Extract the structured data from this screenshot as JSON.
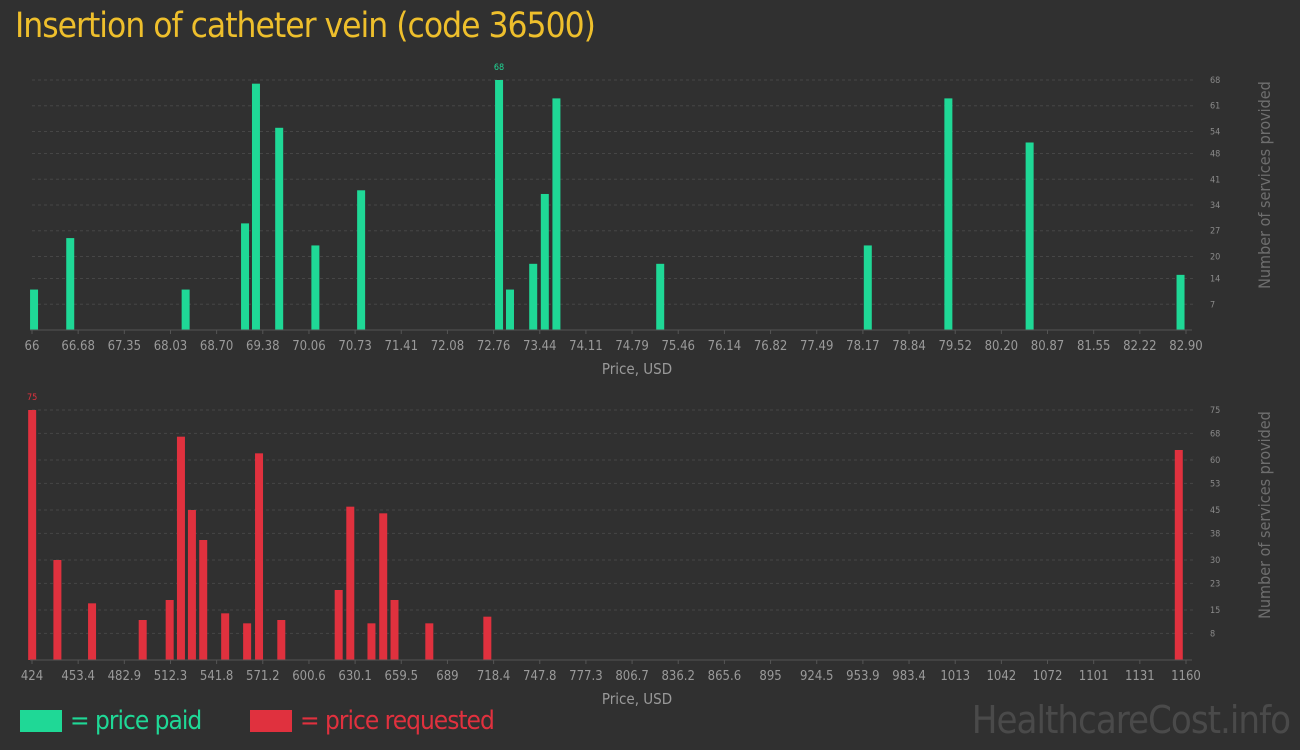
{
  "page": {
    "title": "Insertion of catheter vein (code 36500)",
    "watermark": "HealthcareCost.info"
  },
  "legend": [
    {
      "label": "= price paid",
      "color": "#1fd896"
    },
    {
      "label": "= price requested",
      "color": "#e0313e"
    }
  ],
  "chart_data": [
    {
      "type": "bar",
      "color": "#1fd896",
      "xlabel": "Price, USD",
      "ylabel": "Number of services provided",
      "grid": true,
      "xlim": [
        66,
        82.9
      ],
      "ylim": [
        0,
        68
      ],
      "xticks": [
        "66",
        "66.68",
        "67.35",
        "68.03",
        "68.70",
        "69.38",
        "70.06",
        "70.73",
        "71.41",
        "72.08",
        "72.76",
        "73.44",
        "74.11",
        "74.79",
        "75.46",
        "76.14",
        "76.82",
        "77.49",
        "78.17",
        "78.84",
        "79.52",
        "80.20",
        "80.87",
        "81.55",
        "82.22",
        "82.90"
      ],
      "yticks": [
        "7",
        "14",
        "20",
        "27",
        "34",
        "41",
        "48",
        "54",
        "61",
        "68"
      ],
      "max_label": "68",
      "bars": [
        {
          "x": 66.03,
          "y": 11
        },
        {
          "x": 66.56,
          "y": 25
        },
        {
          "x": 68.25,
          "y": 11
        },
        {
          "x": 69.12,
          "y": 29
        },
        {
          "x": 69.28,
          "y": 67
        },
        {
          "x": 69.62,
          "y": 55
        },
        {
          "x": 70.15,
          "y": 23
        },
        {
          "x": 70.82,
          "y": 38
        },
        {
          "x": 72.84,
          "y": 68
        },
        {
          "x": 73.0,
          "y": 11
        },
        {
          "x": 73.34,
          "y": 18
        },
        {
          "x": 73.51,
          "y": 37
        },
        {
          "x": 73.68,
          "y": 63
        },
        {
          "x": 75.2,
          "y": 18
        },
        {
          "x": 78.24,
          "y": 23
        },
        {
          "x": 79.42,
          "y": 63
        },
        {
          "x": 80.61,
          "y": 51
        },
        {
          "x": 82.82,
          "y": 15
        }
      ]
    },
    {
      "type": "bar",
      "color": "#e0313e",
      "xlabel": "Price, USD",
      "ylabel": "Number of services provided",
      "grid": true,
      "xlim": [
        424,
        1160
      ],
      "ylim": [
        0,
        75
      ],
      "xticks": [
        "424",
        "453.4",
        "482.9",
        "512.3",
        "541.8",
        "571.2",
        "600.6",
        "630.1",
        "659.5",
        "689",
        "718.4",
        "747.8",
        "777.3",
        "806.7",
        "836.2",
        "865.6",
        "895",
        "924.5",
        "953.9",
        "983.4",
        "1013",
        "1042",
        "1072",
        "1101",
        "1131",
        "1160"
      ],
      "yticks": [
        "8",
        "15",
        "23",
        "30",
        "38",
        "45",
        "53",
        "60",
        "68",
        "75"
      ],
      "max_label": "75",
      "bars": [
        {
          "x": 424.1,
          "y": 75
        },
        {
          "x": 440.2,
          "y": 30
        },
        {
          "x": 462.3,
          "y": 17
        },
        {
          "x": 494.6,
          "y": 12
        },
        {
          "x": 511.8,
          "y": 18
        },
        {
          "x": 519.0,
          "y": 67
        },
        {
          "x": 526.0,
          "y": 45
        },
        {
          "x": 533.2,
          "y": 36
        },
        {
          "x": 547.2,
          "y": 14
        },
        {
          "x": 561.2,
          "y": 11
        },
        {
          "x": 568.8,
          "y": 62
        },
        {
          "x": 583.0,
          "y": 12
        },
        {
          "x": 619.6,
          "y": 21
        },
        {
          "x": 627.0,
          "y": 46
        },
        {
          "x": 640.5,
          "y": 11
        },
        {
          "x": 648.0,
          "y": 44
        },
        {
          "x": 655.2,
          "y": 18
        },
        {
          "x": 677.4,
          "y": 11
        },
        {
          "x": 714.4,
          "y": 13
        },
        {
          "x": 1155.4,
          "y": 63
        }
      ]
    }
  ]
}
